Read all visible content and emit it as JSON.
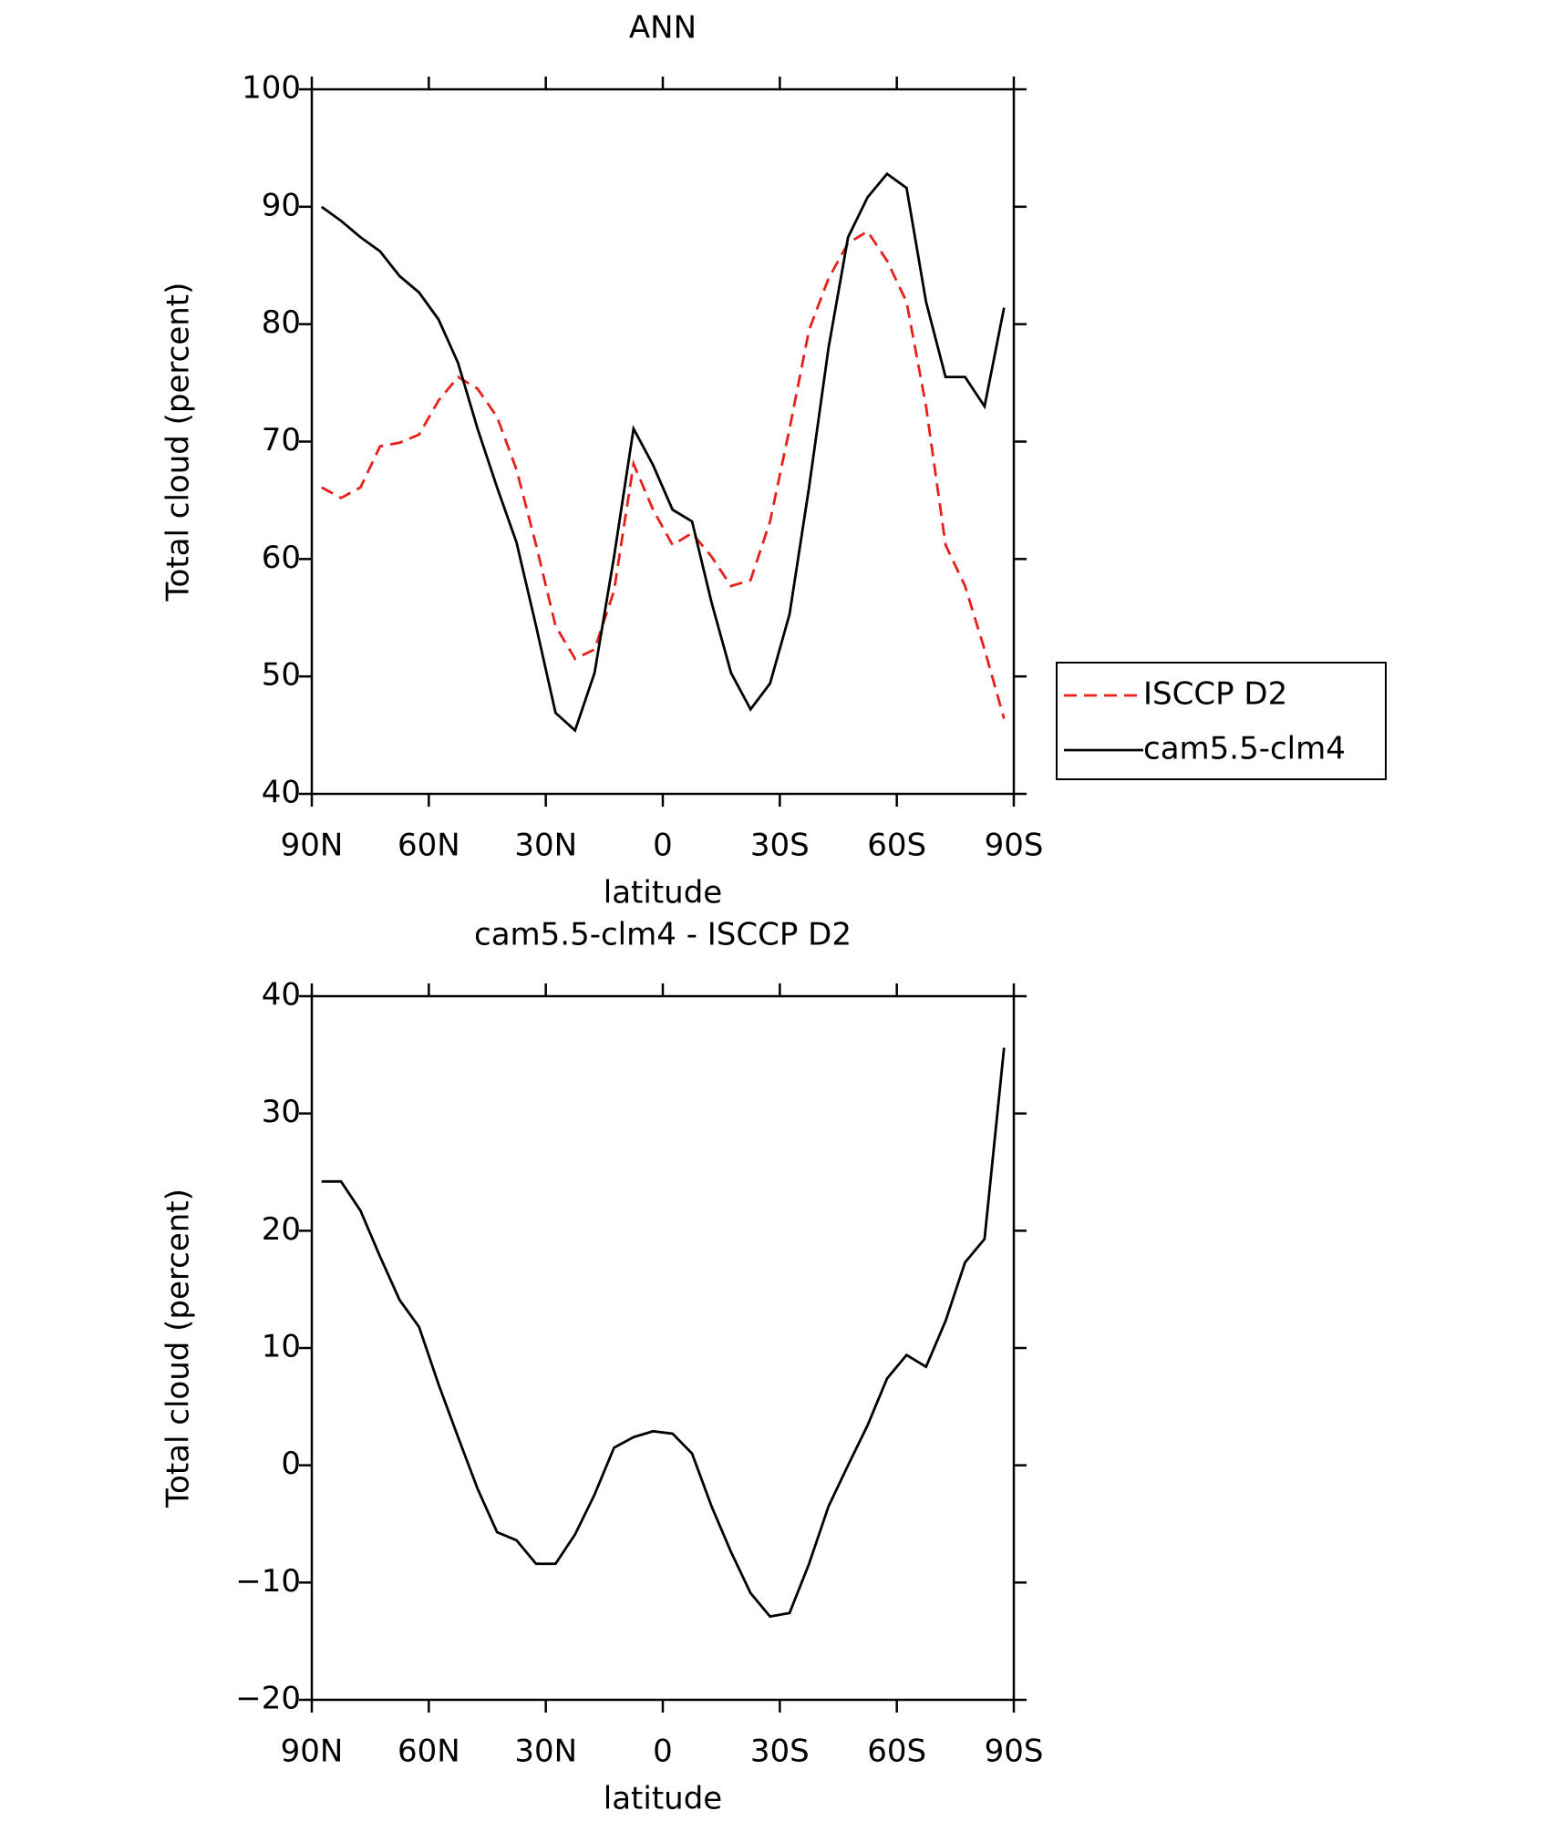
{
  "chart_data": [
    {
      "type": "line",
      "title": "ANN",
      "xlabel": "latitude",
      "ylabel": "Total cloud (percent)",
      "xlim": [
        90,
        -90
      ],
      "xticks": [
        {
          "value": 90,
          "label": "90N"
        },
        {
          "value": 60,
          "label": "60N"
        },
        {
          "value": 30,
          "label": "30N"
        },
        0,
        {
          "value": -30,
          "label": "30S"
        },
        {
          "value": -60,
          "label": "60S"
        },
        {
          "value": -90,
          "label": "90S"
        }
      ],
      "ylim": [
        40,
        100
      ],
      "yticks": [
        40,
        50,
        60,
        70,
        80,
        90,
        100
      ],
      "legend": "right",
      "x": [
        87.5,
        82.5,
        77.5,
        72.5,
        67.5,
        62.5,
        57.5,
        52.5,
        47.5,
        42.5,
        37.5,
        32.5,
        27.5,
        22.5,
        17.5,
        12.5,
        7.5,
        2.5,
        -2.5,
        -7.5,
        -12.5,
        -17.5,
        -22.5,
        -27.5,
        -32.5,
        -37.5,
        -42.5,
        -47.5,
        -52.5,
        -57.5,
        -62.5,
        -67.5,
        -72.5,
        -77.5,
        -82.5,
        -87.5
      ],
      "series": [
        {
          "name": "ISCCP D2",
          "color": "#e8201a",
          "dash": true,
          "values": [
            66.1,
            65.2,
            66.1,
            69.6,
            69.9,
            70.6,
            73.5,
            75.5,
            74.5,
            72.1,
            67.6,
            61.2,
            54.3,
            51.5,
            52.3,
            57.3,
            68.1,
            64.2,
            61.2,
            62.2,
            60.2,
            57.7,
            58.2,
            63.2,
            71.1,
            79.5,
            83.9,
            86.9,
            87.9,
            85.4,
            81.9,
            73,
            61.2,
            57.7,
            52.3,
            46.4
          ]
        },
        {
          "name": "cam5.5-clm4",
          "color": "#000000",
          "dash": false,
          "values": [
            90,
            88.8,
            87.4,
            86.2,
            84.1,
            82.7,
            80.4,
            76.7,
            71.1,
            66.1,
            61.4,
            54.3,
            46.9,
            45.4,
            50.3,
            60.2,
            71.1,
            68,
            64.2,
            63.2,
            56.3,
            50.3,
            47.2,
            49.4,
            55.3,
            66.1,
            78,
            87.4,
            90.8,
            92.8,
            91.6,
            81.9,
            75.5,
            75.5,
            73,
            81.4
          ]
        }
      ]
    },
    {
      "type": "line",
      "title": "cam5.5-clm4 - ISCCP D2",
      "xlabel": "latitude",
      "ylabel": "Total cloud (percent)",
      "xlim": [
        90,
        -90
      ],
      "xticks": [
        {
          "value": 90,
          "label": "90N"
        },
        {
          "value": 60,
          "label": "60N"
        },
        {
          "value": 30,
          "label": "30N"
        },
        0,
        {
          "value": -30,
          "label": "30S"
        },
        {
          "value": -60,
          "label": "60S"
        },
        {
          "value": -90,
          "label": "90S"
        }
      ],
      "ylim": [
        -20,
        40
      ],
      "yticks": [
        {
          "value": -20,
          "label": "−20"
        },
        {
          "value": -10,
          "label": "−10"
        },
        0,
        10,
        20,
        30,
        40
      ],
      "x": [
        87.5,
        82.5,
        77.5,
        72.5,
        67.5,
        62.5,
        57.5,
        52.5,
        47.5,
        42.5,
        37.5,
        32.5,
        27.5,
        22.5,
        17.5,
        12.5,
        7.5,
        2.5,
        -2.5,
        -7.5,
        -12.5,
        -17.5,
        -22.5,
        -27.5,
        -32.5,
        -37.5,
        -42.5,
        -47.5,
        -52.5,
        -57.5,
        -62.5,
        -67.5,
        -72.5,
        -77.5,
        -82.5,
        -87.5
      ],
      "series": [
        {
          "color": "#000000",
          "dash": false,
          "values": [
            24.2,
            24.2,
            21.7,
            17.8,
            14.1,
            11.8,
            6.9,
            2.4,
            -2,
            -5.7,
            -6.4,
            -8.4,
            -8.4,
            -5.9,
            -2.5,
            1.5,
            2.4,
            2.9,
            2.7,
            1,
            -3.5,
            -7.4,
            -10.9,
            -12.9,
            -12.6,
            -8.4,
            -3.5,
            0,
            3.4,
            7.4,
            9.4,
            8.4,
            12.3,
            17.3,
            19.3,
            35.6
          ]
        }
      ]
    }
  ]
}
